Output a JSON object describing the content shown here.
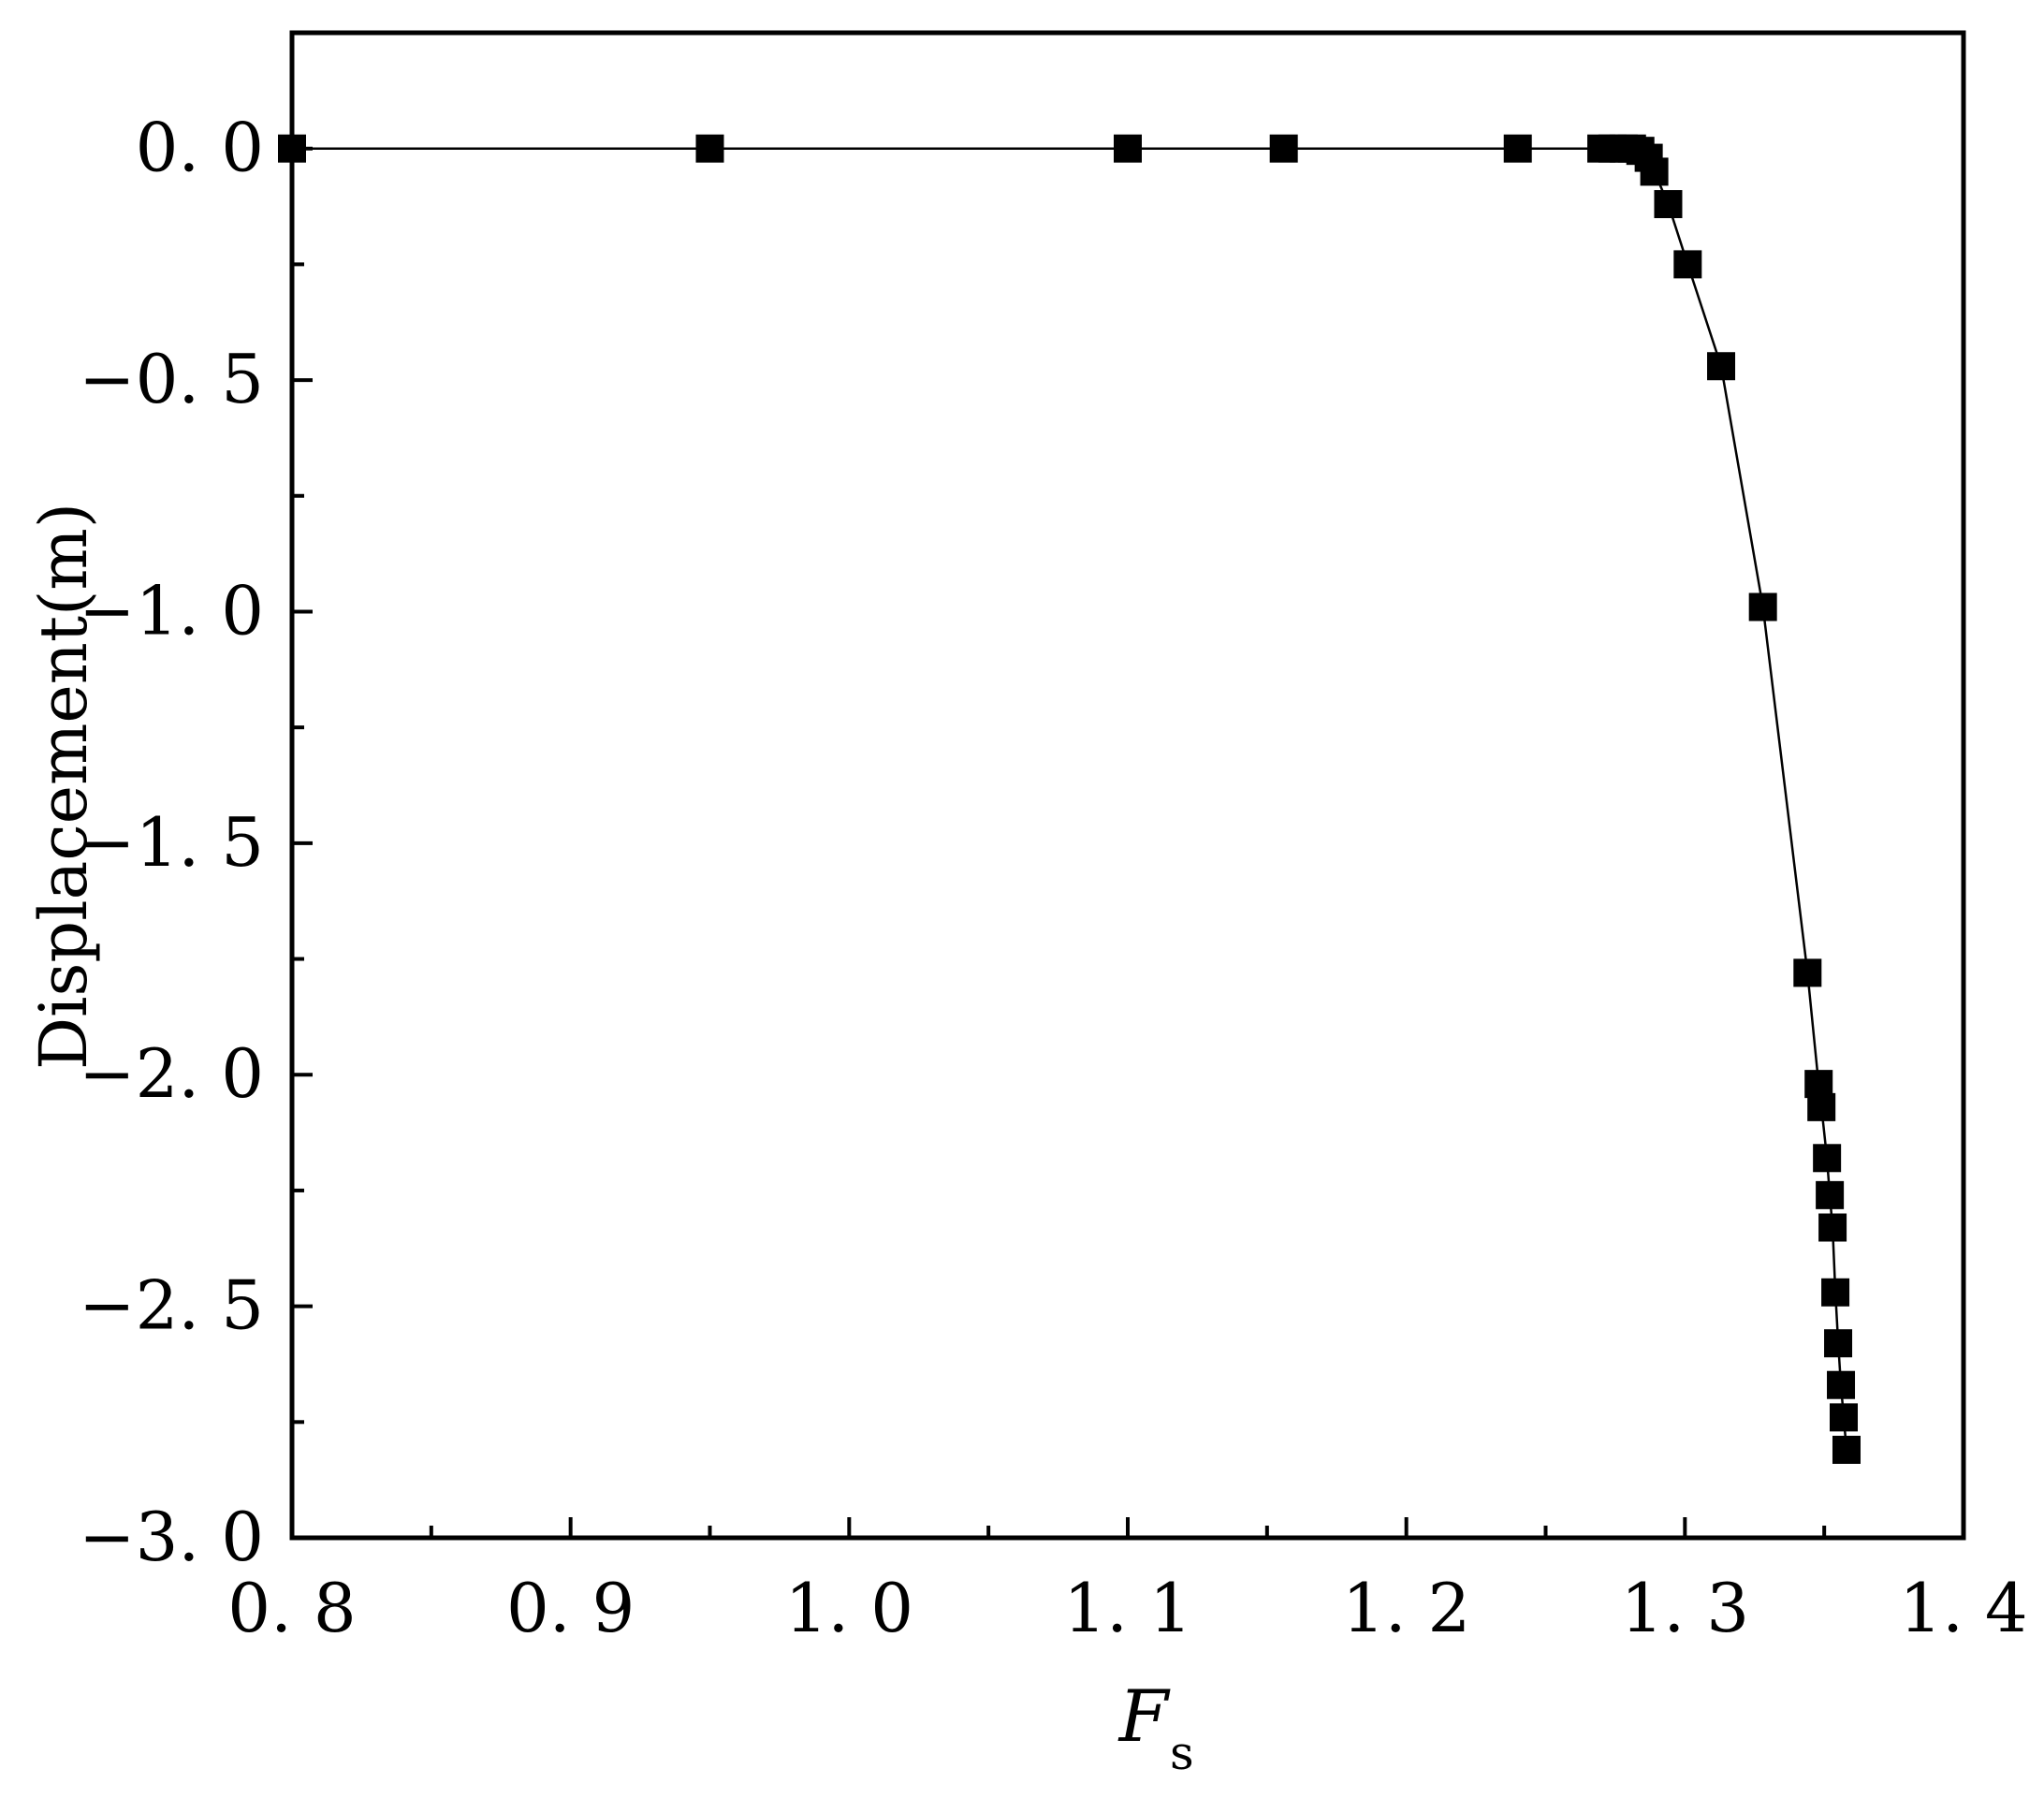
{
  "chart_data": {
    "type": "scatter",
    "title": "",
    "xlabel": "F",
    "xlabel_subscript": "s",
    "ylabel": "Displacement(m)",
    "xlim": [
      0.8,
      1.4
    ],
    "ylim": [
      -3.0,
      0.25
    ],
    "x_ticks": [
      0.8,
      0.9,
      1.0,
      1.1,
      1.2,
      1.3,
      1.4
    ],
    "x_tick_labels": [
      "0. 8",
      "0. 9",
      "1. 0",
      "1. 1",
      "1. 2",
      "1. 3",
      "1. 4"
    ],
    "y_ticks": [
      0.0,
      -0.5,
      -1.0,
      -1.5,
      -2.0,
      -2.5,
      -3.0
    ],
    "y_tick_labels": [
      "0. 0",
      "−0. 5",
      "−1. 0",
      "−1. 5",
      "−2. 0",
      "−2. 5",
      "−3. 0"
    ],
    "grid": false,
    "legend": "none",
    "line_color": "#000000",
    "marker": "square",
    "series": [
      {
        "x": [
          0.8,
          0.95,
          1.1,
          1.156,
          1.24,
          1.27,
          1.274,
          1.278,
          1.281,
          1.284,
          1.287,
          1.289,
          1.294,
          1.301,
          1.313,
          1.328,
          1.344,
          1.348,
          1.349,
          1.351,
          1.352,
          1.353,
          1.354,
          1.355,
          1.356,
          1.357,
          1.358
        ],
        "y": [
          0.0,
          0.0,
          0.0,
          0.0,
          0.0,
          0.0,
          0.0,
          0.0,
          0.0,
          -0.005,
          -0.02,
          -0.05,
          -0.12,
          -0.25,
          -0.47,
          -0.99,
          -1.78,
          -2.02,
          -2.07,
          -2.18,
          -2.26,
          -2.33,
          -2.47,
          -2.58,
          -2.67,
          -2.74,
          -2.81
        ]
      }
    ]
  }
}
